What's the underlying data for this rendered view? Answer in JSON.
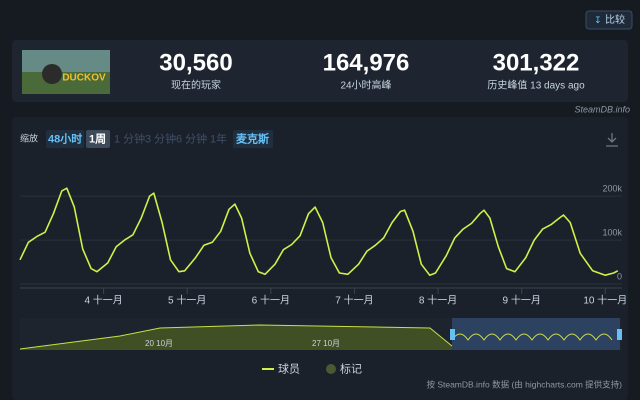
{
  "compare_button": "比较",
  "game": {
    "image_text": "DUCKOV"
  },
  "stats": [
    {
      "value": "30,560",
      "label": "现在的玩家"
    },
    {
      "value": "164,976",
      "label": "24小时高峰"
    },
    {
      "value": "301,322",
      "label": "历史峰值 13 days ago"
    }
  ],
  "watermark": "SteamDB.info",
  "zoom": {
    "label": "缩放",
    "buttons": [
      "48小时",
      "1周",
      "1 分钟",
      "3 分钟",
      "6 分钟",
      "1年",
      "麦克斯"
    ]
  },
  "chart_data": {
    "type": "line",
    "x": [
      3.0,
      3.1,
      3.2,
      3.3,
      3.4,
      3.5,
      3.56,
      3.65,
      3.75,
      3.85,
      3.92,
      4.05,
      4.15,
      4.25,
      4.35,
      4.45,
      4.55,
      4.6,
      4.7,
      4.8,
      4.9,
      4.97,
      5.1,
      5.2,
      5.3,
      5.4,
      5.5,
      5.57,
      5.65,
      5.75,
      5.85,
      5.93,
      6.05,
      6.15,
      6.25,
      6.35,
      6.45,
      6.53,
      6.62,
      6.72,
      6.82,
      6.92,
      7.05,
      7.15,
      7.25,
      7.35,
      7.45,
      7.55,
      7.6,
      7.7,
      7.8,
      7.9,
      7.97,
      8.1,
      8.2,
      8.3,
      8.4,
      8.5,
      8.55,
      8.62,
      8.72,
      8.82,
      8.92,
      9.05,
      9.15,
      9.25,
      9.35,
      9.45,
      9.5,
      9.58,
      9.7,
      9.85,
      10.0,
      10.1,
      10.15
    ],
    "series": [
      {
        "name": "球员",
        "color": "#d2ef4a",
        "values": [
          55000,
          95000,
          108000,
          118000,
          160000,
          212000,
          218000,
          175000,
          80000,
          35000,
          28000,
          48000,
          85000,
          100000,
          112000,
          150000,
          200000,
          207000,
          140000,
          55000,
          28000,
          30000,
          60000,
          88000,
          95000,
          120000,
          170000,
          182000,
          150000,
          70000,
          28000,
          22000,
          45000,
          78000,
          90000,
          110000,
          160000,
          175000,
          140000,
          60000,
          25000,
          22000,
          45000,
          75000,
          88000,
          105000,
          140000,
          165000,
          168000,
          120000,
          45000,
          20000,
          25000,
          65000,
          105000,
          125000,
          138000,
          160000,
          168000,
          150000,
          85000,
          35000,
          28000,
          60000,
          100000,
          125000,
          135000,
          150000,
          157000,
          140000,
          70000,
          30000,
          20000,
          25000,
          30000
        ]
      }
    ],
    "xlim": [
      3.0,
      10.2
    ],
    "xticks": [
      {
        "value": 4,
        "label": "4 十一月"
      },
      {
        "value": 5,
        "label": "5 十一月"
      },
      {
        "value": 6,
        "label": "6 十一月"
      },
      {
        "value": 7,
        "label": "7 十一月"
      },
      {
        "value": 8,
        "label": "8 十一月"
      },
      {
        "value": 9,
        "label": "9 十一月"
      },
      {
        "value": 10,
        "label": "10 十一月"
      }
    ],
    "ylim": [
      0,
      280000
    ],
    "yticks": [
      0,
      {
        "value": 100000,
        "label": "100k"
      },
      {
        "value": 200000,
        "label": "200k"
      }
    ],
    "grid": true,
    "navigator_labels": [
      "20 10月",
      "27 10月"
    ],
    "annotations_legend": "标记",
    "credit": "按 SteamDB.info 数据 (由 highcharts.com 提供支持)"
  }
}
